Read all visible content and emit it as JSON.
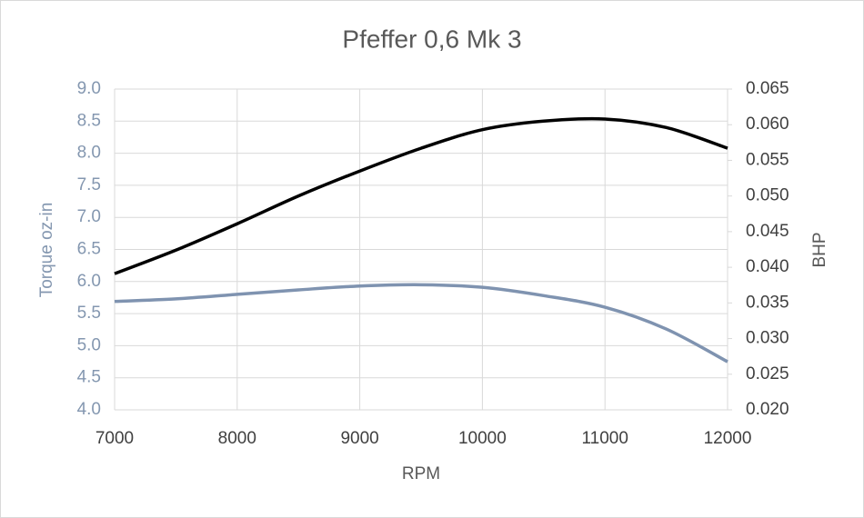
{
  "chart_data": {
    "type": "line",
    "title": "Pfeffer 0,6 Mk 3",
    "xlabel": "RPM",
    "ylabel": "Torque oz-in",
    "y2label": "BHP",
    "x": [
      7000,
      7500,
      8000,
      8500,
      9000,
      9500,
      10000,
      10500,
      11000,
      11500,
      12000
    ],
    "series": [
      {
        "color": "#7f93b0",
        "values": [
          5.69,
          5.73,
          5.8,
          5.87,
          5.93,
          5.95,
          5.91,
          5.78,
          5.6,
          5.26,
          4.75
        ]
      },
      {
        "color": "#000000",
        "axis": "y2",
        "values": [
          0.0391,
          0.0424,
          0.0461,
          0.05,
          0.0535,
          0.0567,
          0.0593,
          0.0605,
          0.0608,
          0.0596,
          0.0567
        ]
      }
    ],
    "xlim": [
      7000,
      12000
    ],
    "xticks": [
      7000,
      8000,
      9000,
      10000,
      11000,
      12000
    ],
    "ylim": [
      4,
      9
    ],
    "yticks": [
      {
        "value": 4,
        "label": "4.0"
      },
      4.5,
      {
        "value": 5,
        "label": "5.0"
      },
      5.5,
      {
        "value": 6,
        "label": "6.0"
      },
      6.5,
      {
        "value": 7,
        "label": "7.0"
      },
      7.5,
      {
        "value": 8,
        "label": "8.0"
      },
      8.5,
      {
        "value": 9,
        "label": "9.0"
      }
    ],
    "y2lim": [
      0.02,
      0.065
    ],
    "y2ticks": [
      {
        "value": 0.02,
        "label": "0.020"
      },
      0.025,
      {
        "value": 0.03,
        "label": "0.030"
      },
      0.035,
      {
        "value": 0.04,
        "label": "0.040"
      },
      0.045,
      {
        "value": 0.05,
        "label": "0.050"
      },
      0.055,
      {
        "value": 0.06,
        "label": "0.060"
      },
      0.065
    ],
    "grid": true,
    "ytick_color": "#8497b0"
  }
}
